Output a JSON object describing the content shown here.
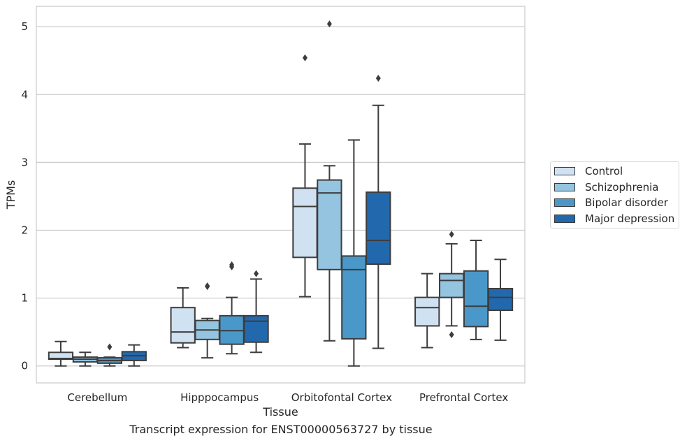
{
  "chart_data": {
    "type": "box",
    "title": "",
    "caption": "Transcript expression for ENST00000563727 by tissue",
    "xlabel": "Tissue",
    "ylabel": "TPMs",
    "ylim": [
      -0.25,
      5.3
    ],
    "yticks": [
      0,
      1,
      2,
      3,
      4,
      5
    ],
    "grid": "horizontal",
    "legend_position": "right",
    "categories": [
      "Cerebellum",
      "Hipppocampus",
      "Orbitofontal Cortex",
      "Prefrontal Cortex"
    ],
    "series": [
      {
        "name": "Control",
        "color": "#d0e1f2",
        "boxes": [
          {
            "min": 0.0,
            "q1": 0.1,
            "median": 0.11,
            "q3": 0.2,
            "max": 0.36,
            "outliers": []
          },
          {
            "min": 0.27,
            "q1": 0.34,
            "median": 0.5,
            "q3": 0.86,
            "max": 1.15,
            "outliers": []
          },
          {
            "min": 1.02,
            "q1": 1.6,
            "median": 2.35,
            "q3": 2.62,
            "max": 3.27,
            "outliers": [
              4.54
            ]
          },
          {
            "min": 0.27,
            "q1": 0.59,
            "median": 0.86,
            "q3": 1.01,
            "max": 1.36,
            "outliers": []
          }
        ]
      },
      {
        "name": "Schizophrenia",
        "color": "#94c4df",
        "boxes": [
          {
            "min": 0.0,
            "q1": 0.06,
            "median": 0.1,
            "q3": 0.13,
            "max": 0.2,
            "outliers": []
          },
          {
            "min": 0.12,
            "q1": 0.39,
            "median": 0.53,
            "q3": 0.67,
            "max": 0.7,
            "outliers": [
              1.17,
              1.18
            ]
          },
          {
            "min": 0.37,
            "q1": 1.42,
            "median": 2.55,
            "q3": 2.74,
            "max": 2.95,
            "outliers": [
              5.04
            ]
          },
          {
            "min": 0.59,
            "q1": 1.01,
            "median": 1.26,
            "q3": 1.36,
            "max": 1.8,
            "outliers": [
              1.94,
              0.46
            ]
          }
        ]
      },
      {
        "name": "Bipolar disorder",
        "color": "#4a98c9",
        "boxes": [
          {
            "min": 0.0,
            "q1": 0.04,
            "median": 0.08,
            "q3": 0.12,
            "max": 0.13,
            "outliers": [
              0.28
            ]
          },
          {
            "min": 0.18,
            "q1": 0.32,
            "median": 0.52,
            "q3": 0.74,
            "max": 1.01,
            "outliers": [
              1.46,
              1.49
            ]
          },
          {
            "min": 0.0,
            "q1": 0.4,
            "median": 1.42,
            "q3": 1.62,
            "max": 3.33,
            "outliers": []
          },
          {
            "min": 0.39,
            "q1": 0.58,
            "median": 0.88,
            "q3": 1.4,
            "max": 1.85,
            "outliers": []
          }
        ]
      },
      {
        "name": "Major depression",
        "color": "#2268ad",
        "boxes": [
          {
            "min": 0.0,
            "q1": 0.08,
            "median": 0.15,
            "q3": 0.21,
            "max": 0.31,
            "outliers": []
          },
          {
            "min": 0.2,
            "q1": 0.35,
            "median": 0.66,
            "q3": 0.74,
            "max": 1.28,
            "outliers": [
              1.36
            ]
          },
          {
            "min": 0.26,
            "q1": 1.5,
            "median": 1.85,
            "q3": 2.56,
            "max": 3.84,
            "outliers": [
              4.24
            ]
          },
          {
            "min": 0.38,
            "q1": 0.82,
            "median": 1.01,
            "q3": 1.14,
            "max": 1.57,
            "outliers": []
          }
        ]
      }
    ]
  }
}
